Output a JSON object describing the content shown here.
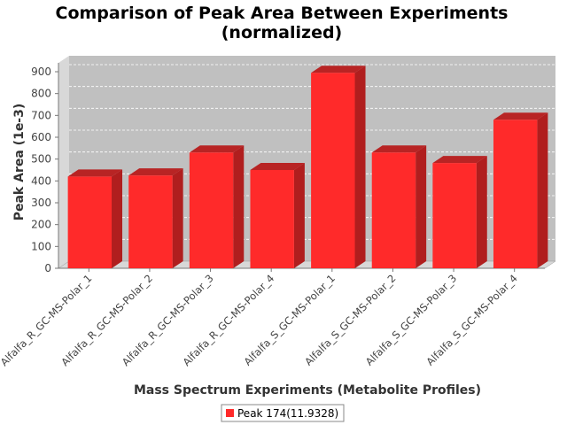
{
  "chart_data": {
    "type": "bar",
    "title": "Comparison of Peak Area Between Experiments",
    "subtitle": "(normalized)",
    "xlabel": "Mass Spectrum Experiments (Metabolite Profiles)",
    "ylabel": "Peak Area (1e-3)",
    "ylim": [
      0,
      900
    ],
    "yticks": [
      0,
      100,
      200,
      300,
      400,
      500,
      600,
      700,
      800,
      900
    ],
    "grid": true,
    "legend_position": "bottom",
    "categories": [
      "Alfalfa_R_GC-MS-Polar_1",
      "Alfalfa_R_GC-MS-Polar_2",
      "Alfalfa_R_GC-MS-Polar_3",
      "Alfalfa_R_GC-MS-Polar_4",
      "Alfalfa_S_GC-MS-Polar_1",
      "Alfalfa_S_GC-MS-Polar_2",
      "Alfalfa_S_GC-MS-Polar_3",
      "Alfalfa_S_GC-MS-Polar_4"
    ],
    "series": [
      {
        "name": "Peak 174(11.9328)",
        "color": "#ff2a2a",
        "values": [
          420,
          425,
          530,
          450,
          895,
          530,
          482,
          680
        ]
      }
    ]
  }
}
